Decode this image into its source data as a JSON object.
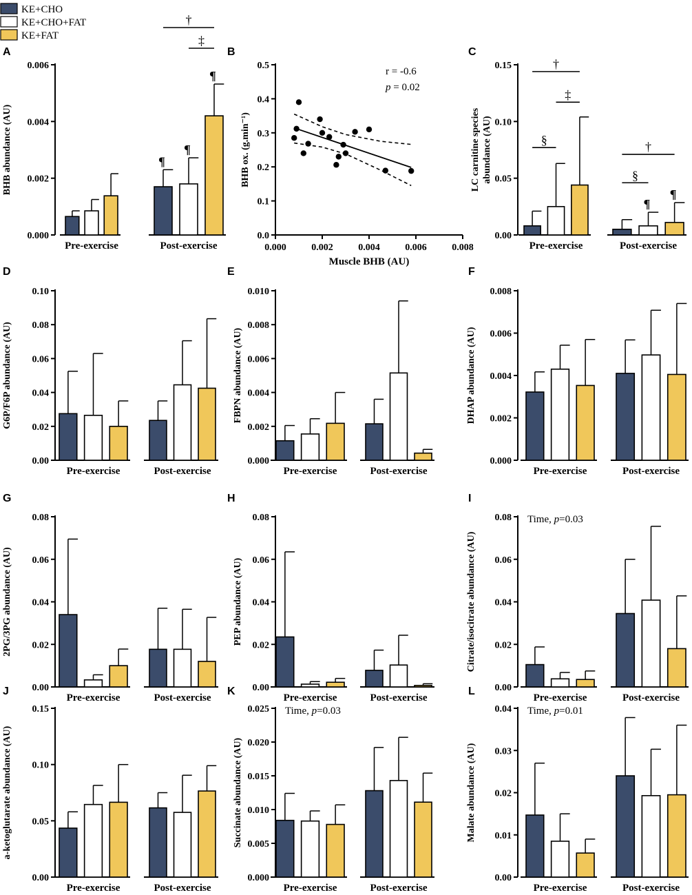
{
  "legend": [
    {
      "label": "KE+CHO",
      "color": "#3b4c6b"
    },
    {
      "label": "KE+CHO+FAT",
      "color": "#ffffff"
    },
    {
      "label": "KE+FAT",
      "color": "#f0c75a"
    }
  ],
  "chart_data": [
    {
      "id": "A",
      "type": "bar",
      "panel_label": "A",
      "ylabel": "BHB abundance (AU)",
      "ylim": [
        0,
        0.006
      ],
      "yticks": [
        "0.000",
        "0.002",
        "0.004",
        "0.006"
      ],
      "categories": [
        "Pre-exercise",
        "Post-exercise"
      ],
      "series": [
        {
          "name": "KE+CHO",
          "values": [
            0.00065,
            0.0017
          ],
          "errors": [
            0.0002,
            0.0006
          ]
        },
        {
          "name": "KE+CHO+FAT",
          "values": [
            0.00085,
            0.0018
          ],
          "errors": [
            0.0004,
            0.00092
          ]
        },
        {
          "name": "KE+FAT",
          "values": [
            0.00138,
            0.0042
          ],
          "errors": [
            0.00078,
            0.00112
          ]
        }
      ],
      "bar_marks": [
        {
          "cat": 1,
          "series": 0,
          "text": "¶"
        },
        {
          "cat": 1,
          "series": 1,
          "text": "¶"
        },
        {
          "cat": 1,
          "series": 2,
          "text": "¶"
        }
      ],
      "brackets": [
        {
          "from": [
            1,
            0
          ],
          "to": [
            1,
            2
          ],
          "level": 2,
          "text": "†"
        },
        {
          "from": [
            1,
            1
          ],
          "to": [
            1,
            2
          ],
          "level": 1,
          "text": "‡"
        }
      ]
    },
    {
      "id": "B",
      "type": "scatter",
      "panel_label": "B",
      "title": "",
      "xlabel": "Muscle BHB (AU)",
      "ylabel": "BHB ox. (g.min⁻¹)",
      "xlim": [
        0,
        0.008
      ],
      "ylim": [
        0,
        0.5
      ],
      "xticks": [
        "0.000",
        "0.002",
        "0.004",
        "0.006",
        "0.008"
      ],
      "yticks": [
        "0.0",
        "0.1",
        "0.2",
        "0.3",
        "0.4",
        "0.5"
      ],
      "points": [
        [
          0.001,
          0.39
        ],
        [
          0.0009,
          0.312
        ],
        [
          0.0008,
          0.285
        ],
        [
          0.0012,
          0.24
        ],
        [
          0.0014,
          0.268
        ],
        [
          0.0019,
          0.34
        ],
        [
          0.002,
          0.3
        ],
        [
          0.0023,
          0.288
        ],
        [
          0.0026,
          0.206
        ],
        [
          0.0027,
          0.23
        ],
        [
          0.0029,
          0.265
        ],
        [
          0.003,
          0.24
        ],
        [
          0.0034,
          0.303
        ],
        [
          0.004,
          0.31
        ],
        [
          0.0047,
          0.189
        ],
        [
          0.0058,
          0.188
        ]
      ],
      "fit": {
        "slope": -23.2,
        "intercept": 0.333,
        "x_range": [
          0.0008,
          0.0058
        ]
      },
      "ci_upper": [
        [
          0.0008,
          0.355
        ],
        [
          0.002,
          0.318
        ],
        [
          0.003,
          0.295
        ],
        [
          0.0045,
          0.275
        ],
        [
          0.0058,
          0.266
        ]
      ],
      "ci_lower": [
        [
          0.0008,
          0.27
        ],
        [
          0.002,
          0.258
        ],
        [
          0.003,
          0.238
        ],
        [
          0.0045,
          0.19
        ],
        [
          0.0058,
          0.145
        ]
      ],
      "annotations": {
        "r": "r = -0.6",
        "p_italic": "p",
        "p_rest": " = 0.02"
      }
    },
    {
      "id": "C",
      "type": "bar",
      "panel_label": "C",
      "ylabel": [
        "LC carnitine species",
        "abundance (AU)"
      ],
      "ylim": [
        0,
        0.15
      ],
      "yticks": [
        "0.00",
        "0.05",
        "0.10",
        "0.15"
      ],
      "categories": [
        "Pre-exercise",
        "Post-exercise"
      ],
      "series": [
        {
          "name": "KE+CHO",
          "values": [
            0.008,
            0.005
          ],
          "errors": [
            0.013,
            0.0085
          ]
        },
        {
          "name": "KE+CHO+FAT",
          "values": [
            0.025,
            0.008
          ],
          "errors": [
            0.038,
            0.012
          ]
        },
        {
          "name": "KE+FAT",
          "values": [
            0.044,
            0.011
          ],
          "errors": [
            0.06,
            0.0175
          ]
        }
      ],
      "bar_marks": [
        {
          "cat": 1,
          "series": 1,
          "text": "¶"
        },
        {
          "cat": 1,
          "series": 2,
          "text": "¶"
        }
      ],
      "brackets": [
        {
          "from": [
            0,
            0
          ],
          "to": [
            0,
            2
          ],
          "y_value": 0.144,
          "text": "†"
        },
        {
          "from": [
            0,
            1
          ],
          "to": [
            0,
            2
          ],
          "y_value": 0.117,
          "text": "‡"
        },
        {
          "from": [
            0,
            0
          ],
          "to": [
            0,
            1
          ],
          "y_value": 0.077,
          "text": "§"
        },
        {
          "from": [
            1,
            0
          ],
          "to": [
            1,
            2
          ],
          "y_value": 0.071,
          "text": "†"
        },
        {
          "from": [
            1,
            0
          ],
          "to": [
            1,
            1
          ],
          "y_value": 0.046,
          "text": "§"
        }
      ]
    },
    {
      "id": "D",
      "type": "bar",
      "panel_label": "D",
      "ylabel": "G6P/F6P abundance (AU)",
      "ylim": [
        0,
        0.1
      ],
      "yticks": [
        "0.00",
        "0.02",
        "0.04",
        "0.06",
        "0.08",
        "0.10"
      ],
      "categories": [
        "Pre-exercise",
        "Post-exercise"
      ],
      "series": [
        {
          "name": "KE+CHO",
          "values": [
            0.0275,
            0.0235
          ],
          "errors": [
            0.025,
            0.0115
          ]
        },
        {
          "name": "KE+CHO+FAT",
          "values": [
            0.0265,
            0.0445
          ],
          "errors": [
            0.0365,
            0.026
          ]
        },
        {
          "name": "KE+FAT",
          "values": [
            0.02,
            0.0425
          ],
          "errors": [
            0.015,
            0.041
          ]
        }
      ]
    },
    {
      "id": "E",
      "type": "bar",
      "panel_label": "E",
      "ylabel": "FBPN abundance (AU)",
      "ylim": [
        0,
        0.01
      ],
      "yticks": [
        "0.000",
        "0.002",
        "0.004",
        "0.006",
        "0.008",
        "0.010"
      ],
      "categories": [
        "Pre-exercise",
        "Post-exercise"
      ],
      "series": [
        {
          "name": "KE+CHO",
          "values": [
            0.00115,
            0.00215
          ],
          "errors": [
            0.0009,
            0.00145
          ]
        },
        {
          "name": "KE+CHO+FAT",
          "values": [
            0.00155,
            0.00515
          ],
          "errors": [
            0.0009,
            0.00425
          ]
        },
        {
          "name": "KE+FAT",
          "values": [
            0.00218,
            0.00042
          ],
          "errors": [
            0.00182,
            0.00022
          ]
        }
      ]
    },
    {
      "id": "F",
      "type": "bar",
      "panel_label": "F",
      "ylabel": "DHAP abundance (AU)",
      "ylim": [
        0,
        0.008
      ],
      "yticks": [
        "0.000",
        "0.002",
        "0.004",
        "0.006",
        "0.008"
      ],
      "categories": [
        "Pre-exercise",
        "Post-exercise"
      ],
      "series": [
        {
          "name": "KE+CHO",
          "values": [
            0.00322,
            0.0041
          ],
          "errors": [
            0.00095,
            0.00158
          ]
        },
        {
          "name": "KE+CHO+FAT",
          "values": [
            0.0043,
            0.00497
          ],
          "errors": [
            0.00113,
            0.00211
          ]
        },
        {
          "name": "KE+FAT",
          "values": [
            0.00353,
            0.00405
          ],
          "errors": [
            0.00217,
            0.00335
          ]
        }
      ]
    },
    {
      "id": "G",
      "type": "bar",
      "panel_label": "G",
      "ylabel": "2PG/3PG abundance (AU)",
      "ylim": [
        0,
        0.08
      ],
      "yticks": [
        "0.00",
        "0.02",
        "0.04",
        "0.06",
        "0.08"
      ],
      "categories": [
        "Pre-exercise",
        "Post-exercise"
      ],
      "series": [
        {
          "name": "KE+CHO",
          "values": [
            0.034,
            0.0177
          ],
          "errors": [
            0.0355,
            0.0193
          ]
        },
        {
          "name": "KE+CHO+FAT",
          "values": [
            0.0033,
            0.0177
          ],
          "errors": [
            0.0024,
            0.0188
          ]
        },
        {
          "name": "KE+FAT",
          "values": [
            0.01,
            0.012
          ],
          "errors": [
            0.0078,
            0.0207
          ]
        }
      ]
    },
    {
      "id": "H",
      "type": "bar",
      "panel_label": "H",
      "ylabel": "PEP abundance (AU)",
      "ylim": [
        0,
        0.08
      ],
      "yticks": [
        "0.00",
        "0.02",
        "0.04",
        "0.06",
        "0.08"
      ],
      "categories": [
        "Pre-exercise",
        "Post-exercise"
      ],
      "series": [
        {
          "name": "KE+CHO",
          "values": [
            0.0235,
            0.0078
          ],
          "errors": [
            0.04,
            0.0095
          ]
        },
        {
          "name": "KE+CHO+FAT",
          "values": [
            0.0013,
            0.0103
          ],
          "errors": [
            0.0012,
            0.014
          ]
        },
        {
          "name": "KE+FAT",
          "values": [
            0.0022,
            0.0007
          ],
          "errors": [
            0.0018,
            0.0008
          ]
        }
      ]
    },
    {
      "id": "I",
      "type": "bar",
      "panel_label": "I",
      "ylabel": "Citrate/isocitrate abundance (AU)",
      "ylim": [
        0,
        0.08
      ],
      "yticks": [
        "0.00",
        "0.02",
        "0.04",
        "0.06",
        "0.08"
      ],
      "categories": [
        "Pre-exercise",
        "Post-exercise"
      ],
      "series": [
        {
          "name": "KE+CHO",
          "values": [
            0.0105,
            0.0345
          ],
          "errors": [
            0.0083,
            0.0255
          ]
        },
        {
          "name": "KE+CHO+FAT",
          "values": [
            0.0038,
            0.0408
          ],
          "errors": [
            0.003,
            0.0347
          ]
        },
        {
          "name": "KE+FAT",
          "values": [
            0.0035,
            0.018
          ],
          "errors": [
            0.004,
            0.0248
          ]
        }
      ],
      "annotation": {
        "text": "Time, ",
        "italic": "p",
        "rest": "=0.03"
      }
    },
    {
      "id": "J",
      "type": "bar",
      "panel_label": "J",
      "ylabel": "a-ketoglutarate abundance (AU)",
      "ylim": [
        0,
        0.15
      ],
      "yticks": [
        "0.00",
        "0.05",
        "0.10",
        "0.15"
      ],
      "categories": [
        "Pre-exercise",
        "Post-exercise"
      ],
      "series": [
        {
          "name": "KE+CHO",
          "values": [
            0.0435,
            0.0615
          ],
          "errors": [
            0.0145,
            0.0135
          ]
        },
        {
          "name": "KE+CHO+FAT",
          "values": [
            0.0645,
            0.0575
          ],
          "errors": [
            0.017,
            0.033
          ]
        },
        {
          "name": "KE+FAT",
          "values": [
            0.0665,
            0.0765
          ],
          "errors": [
            0.0335,
            0.0225
          ]
        }
      ]
    },
    {
      "id": "K",
      "type": "bar",
      "panel_label": "K",
      "ylabel": "Succinate abundance (AU)",
      "ylim": [
        0,
        0.025
      ],
      "yticks": [
        "0.000",
        "0.005",
        "0.010",
        "0.015",
        "0.020",
        "0.025"
      ],
      "categories": [
        "Pre-exercise",
        "Post-exercise"
      ],
      "series": [
        {
          "name": "KE+CHO",
          "values": [
            0.0084,
            0.0128
          ],
          "errors": [
            0.004,
            0.0064
          ]
        },
        {
          "name": "KE+CHO+FAT",
          "values": [
            0.0083,
            0.0143
          ],
          "errors": [
            0.0015,
            0.0064
          ]
        },
        {
          "name": "KE+FAT",
          "values": [
            0.0078,
            0.0111
          ],
          "errors": [
            0.0029,
            0.0043
          ]
        }
      ],
      "annotation": {
        "text": "Time, ",
        "italic": "p",
        "rest": "=0.03"
      }
    },
    {
      "id": "L",
      "type": "bar",
      "panel_label": "L",
      "ylabel": "Malate abundance (AU)",
      "ylim": [
        0,
        0.04
      ],
      "yticks": [
        "0.00",
        "0.01",
        "0.02",
        "0.03",
        "0.04"
      ],
      "categories": [
        "Pre-exercise",
        "Post-exercise"
      ],
      "series": [
        {
          "name": "KE+CHO",
          "values": [
            0.0147,
            0.024
          ],
          "errors": [
            0.0123,
            0.0138
          ]
        },
        {
          "name": "KE+CHO+FAT",
          "values": [
            0.0085,
            0.0193
          ],
          "errors": [
            0.0065,
            0.011
          ]
        },
        {
          "name": "KE+FAT",
          "values": [
            0.0057,
            0.0195
          ],
          "errors": [
            0.0033,
            0.0165
          ]
        }
      ],
      "annotation": {
        "text": "Time, ",
        "italic": "p",
        "rest": "=0.01"
      }
    }
  ]
}
